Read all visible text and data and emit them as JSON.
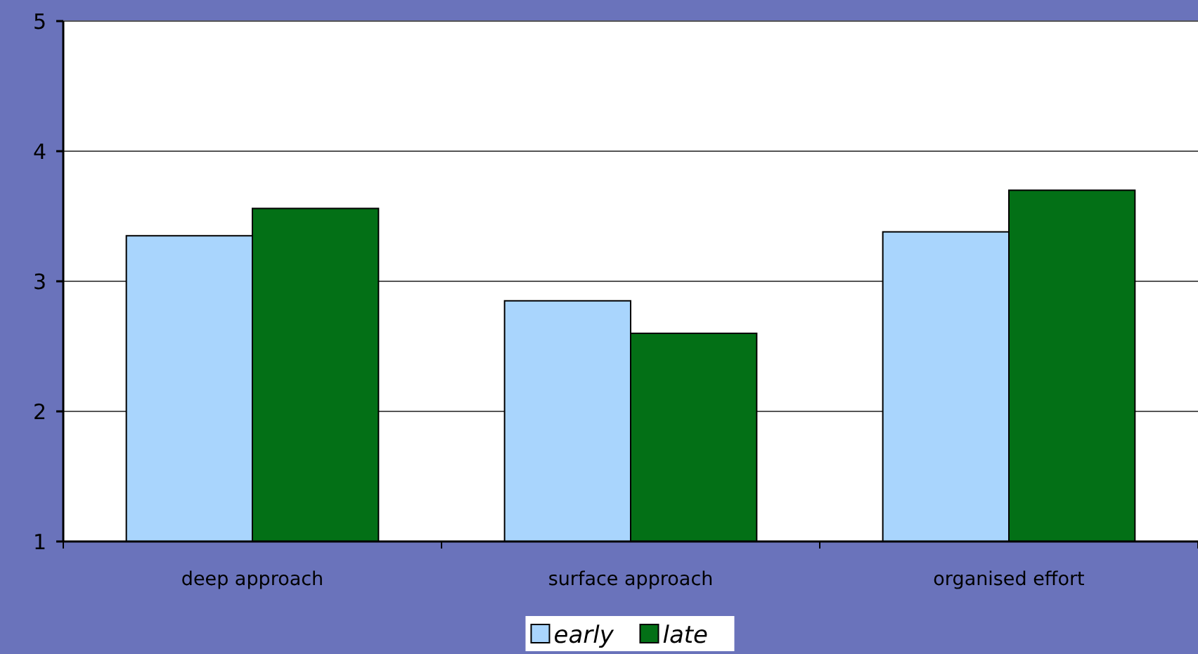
{
  "chart_data": {
    "type": "bar",
    "categories": [
      "deep approach",
      "surface approach",
      "organised effort"
    ],
    "series": [
      {
        "name": "early",
        "color": "#a9d5fd",
        "values": [
          3.35,
          2.85,
          3.38
        ]
      },
      {
        "name": "late",
        "color": "#037016",
        "values": [
          3.56,
          2.6,
          3.7
        ]
      }
    ],
    "ylim": [
      1,
      5
    ],
    "yticks": [
      1,
      2,
      3,
      4,
      5
    ],
    "grid": "y",
    "legend": "bottom"
  }
}
